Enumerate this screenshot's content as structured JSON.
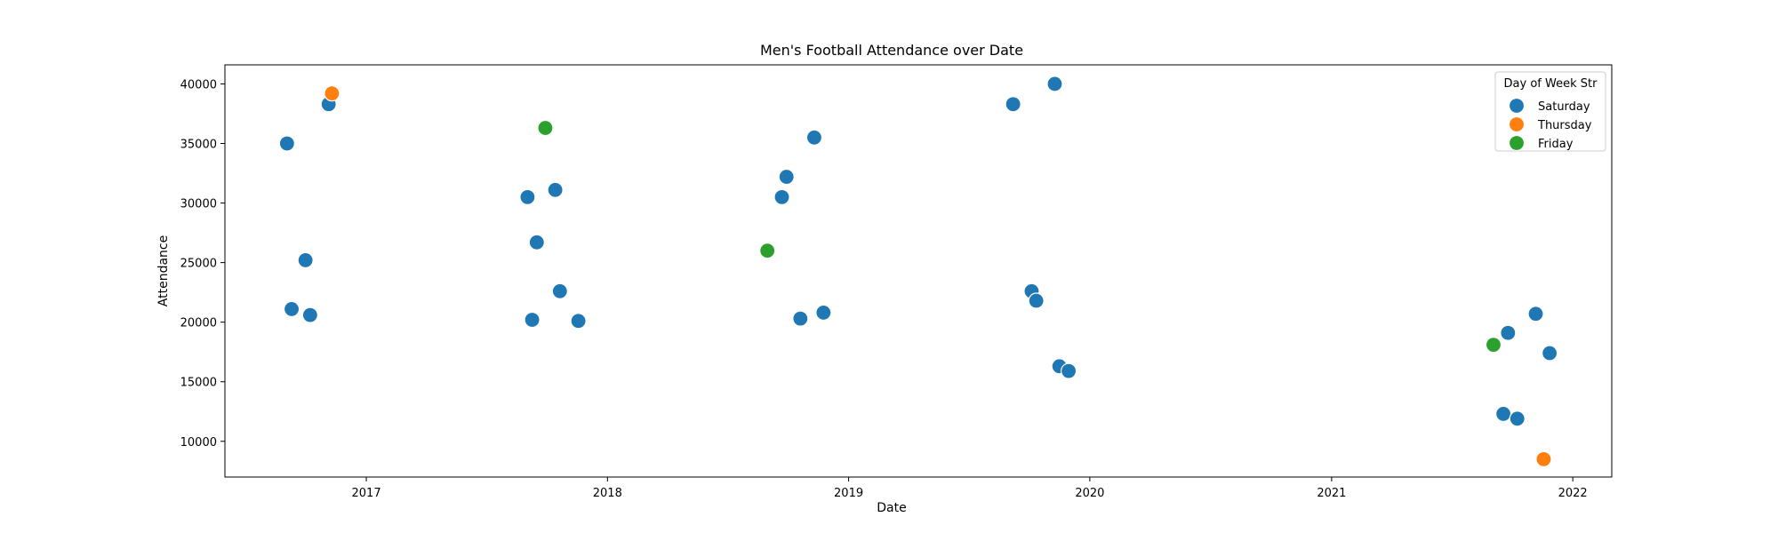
{
  "chart_data": {
    "type": "scatter",
    "title": "Men's Football Attendance over Date",
    "xlabel": "Date",
    "ylabel": "Attendance",
    "x_type": "date",
    "xlim": [
      "2016-06-01",
      "2022-03-01"
    ],
    "ylim": [
      7000,
      41600
    ],
    "x_ticks": [
      {
        "date": "2017-01-01",
        "label": "2017"
      },
      {
        "date": "2018-01-01",
        "label": "2018"
      },
      {
        "date": "2019-01-01",
        "label": "2019"
      },
      {
        "date": "2020-01-01",
        "label": "2020"
      },
      {
        "date": "2021-01-01",
        "label": "2021"
      },
      {
        "date": "2022-01-01",
        "label": "2022"
      }
    ],
    "y_ticks": [
      10000,
      15000,
      20000,
      25000,
      30000,
      35000,
      40000
    ],
    "grid": false,
    "legend": {
      "title": "Day of Week Str",
      "placement": "top-right"
    },
    "series": [
      {
        "name": "Saturday",
        "color": "#1f77b4",
        "points": [
          {
            "x": "2016-09-03",
            "y": 35000
          },
          {
            "x": "2016-09-10",
            "y": 21100
          },
          {
            "x": "2016-10-01",
            "y": 25200
          },
          {
            "x": "2016-10-08",
            "y": 20600
          },
          {
            "x": "2016-11-05",
            "y": 38300
          },
          {
            "x": "2017-09-02",
            "y": 30500
          },
          {
            "x": "2017-09-09",
            "y": 20200
          },
          {
            "x": "2017-09-16",
            "y": 26700
          },
          {
            "x": "2017-10-14",
            "y": 31100
          },
          {
            "x": "2017-10-21",
            "y": 22600
          },
          {
            "x": "2017-11-18",
            "y": 20100
          },
          {
            "x": "2018-09-22",
            "y": 30500
          },
          {
            "x": "2018-09-29",
            "y": 32200
          },
          {
            "x": "2018-10-20",
            "y": 20300
          },
          {
            "x": "2018-11-10",
            "y": 35500
          },
          {
            "x": "2018-11-24",
            "y": 20800
          },
          {
            "x": "2019-09-07",
            "y": 38300
          },
          {
            "x": "2019-10-05",
            "y": 22600
          },
          {
            "x": "2019-10-12",
            "y": 21800
          },
          {
            "x": "2019-11-09",
            "y": 40000
          },
          {
            "x": "2019-11-16",
            "y": 16300
          },
          {
            "x": "2019-11-30",
            "y": 15900
          },
          {
            "x": "2021-09-18",
            "y": 12300
          },
          {
            "x": "2021-09-25",
            "y": 19100
          },
          {
            "x": "2021-10-09",
            "y": 11900
          },
          {
            "x": "2021-11-06",
            "y": 20700
          },
          {
            "x": "2021-11-27",
            "y": 17400
          }
        ]
      },
      {
        "name": "Thursday",
        "color": "#ff7f0e",
        "points": [
          {
            "x": "2016-11-10",
            "y": 39200
          },
          {
            "x": "2021-11-18",
            "y": 8500
          }
        ]
      },
      {
        "name": "Friday",
        "color": "#2ca02c",
        "points": [
          {
            "x": "2017-09-29",
            "y": 36300
          },
          {
            "x": "2018-08-31",
            "y": 26000
          },
          {
            "x": "2021-09-03",
            "y": 18100
          }
        ]
      }
    ]
  }
}
